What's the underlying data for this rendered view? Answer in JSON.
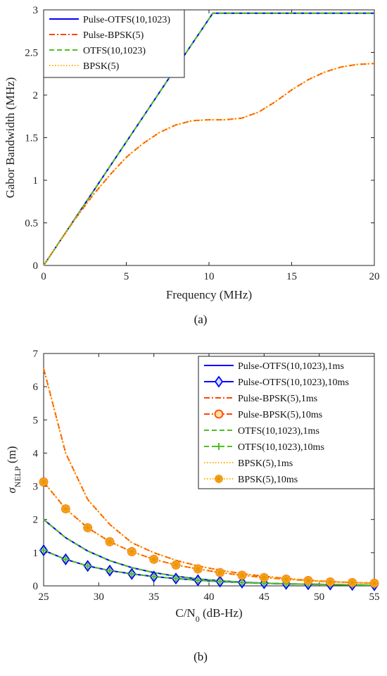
{
  "colors": {
    "pulse_otfs": "#0000ff",
    "pulse_bpsk": "#ff4500",
    "otfs": "#4fbf1f",
    "bpsk": "#ffb000",
    "bpsk_marker_fill": "#f9a825"
  },
  "chart_data": [
    {
      "id": "a",
      "type": "line",
      "caption": "(a)",
      "xlabel": "Frequency (MHz)",
      "ylabel": "Gabor Bandwidth (MHz)",
      "xlim": [
        0,
        20
      ],
      "ylim": [
        0,
        3
      ],
      "xticks": [
        "0",
        "5",
        "10",
        "15",
        "20"
      ],
      "yticks": [
        "0",
        "0.5",
        "1",
        "1.5",
        "2",
        "2.5",
        "3"
      ],
      "grid": false,
      "legend_position": "top-left",
      "series": [
        {
          "name": "Pulse-OTFS(10,1023)",
          "color_key": "pulse_otfs",
          "dash": "solid",
          "x": [
            0,
            2,
            4,
            6,
            8,
            10.23,
            12,
            14,
            16,
            18,
            20
          ],
          "y": [
            0,
            0.58,
            1.16,
            1.74,
            2.32,
            2.96,
            2.96,
            2.96,
            2.96,
            2.96,
            2.96
          ]
        },
        {
          "name": "Pulse-BPSK(5)",
          "color_key": "pulse_bpsk",
          "dash": "dashdot",
          "x": [
            0,
            1,
            2,
            3,
            4,
            5,
            6,
            7,
            8,
            9,
            10,
            11,
            12,
            13,
            14,
            15,
            16,
            17,
            18,
            19,
            20
          ],
          "y": [
            0,
            0.29,
            0.57,
            0.83,
            1.06,
            1.27,
            1.43,
            1.56,
            1.65,
            1.7,
            1.71,
            1.71,
            1.73,
            1.8,
            1.92,
            2.06,
            2.18,
            2.27,
            2.33,
            2.36,
            2.37
          ]
        },
        {
          "name": "OTFS(10,1023)",
          "color_key": "otfs",
          "dash": "dashed",
          "x": [
            0,
            2,
            4,
            6,
            8,
            10.23,
            12,
            14,
            16,
            18,
            20
          ],
          "y": [
            0,
            0.58,
            1.16,
            1.74,
            2.32,
            2.96,
            2.96,
            2.96,
            2.96,
            2.96,
            2.96
          ]
        },
        {
          "name": "BPSK(5)",
          "color_key": "bpsk",
          "dash": "dotted",
          "x": [
            0,
            1,
            2,
            3,
            4,
            5,
            6,
            7,
            8,
            9,
            10,
            11,
            12,
            13,
            14,
            15,
            16,
            17,
            18,
            19,
            20
          ],
          "y": [
            0,
            0.29,
            0.57,
            0.83,
            1.06,
            1.27,
            1.43,
            1.56,
            1.65,
            1.7,
            1.71,
            1.71,
            1.73,
            1.8,
            1.92,
            2.06,
            2.18,
            2.27,
            2.33,
            2.36,
            2.37
          ]
        }
      ]
    },
    {
      "id": "b",
      "type": "line",
      "caption": "(b)",
      "xlabel_main": "C/N",
      "xlabel_sub": "0",
      "xlabel_rest": " (dB-Hz)",
      "ylabel_main": "σ",
      "ylabel_sub": "NELP",
      "ylabel_rest": " (m)",
      "xlim": [
        25,
        55
      ],
      "ylim": [
        0,
        7
      ],
      "xticks": [
        "25",
        "30",
        "35",
        "40",
        "45",
        "50",
        "55"
      ],
      "yticks": [
        "0",
        "1",
        "2",
        "3",
        "4",
        "5",
        "6",
        "7"
      ],
      "grid": false,
      "legend_position": "top-right",
      "series": [
        {
          "name": "Pulse-OTFS(10,1023),1ms",
          "color_key": "pulse_otfs",
          "dash": "solid",
          "marker": "none",
          "x": [
            25,
            27,
            29,
            31,
            33,
            35,
            37,
            39,
            41,
            43,
            45,
            47,
            49,
            51,
            53,
            55
          ],
          "y": [
            2.0,
            1.45,
            1.05,
            0.76,
            0.55,
            0.4,
            0.29,
            0.21,
            0.15,
            0.11,
            0.08,
            0.06,
            0.05,
            0.04,
            0.03,
            0.02
          ]
        },
        {
          "name": "Pulse-OTFS(10,1023),10ms",
          "color_key": "pulse_otfs",
          "dash": "solid",
          "marker": "diamond",
          "x": [
            25,
            27,
            29,
            31,
            33,
            35,
            37,
            39,
            41,
            43,
            45,
            47,
            49,
            51,
            53,
            55
          ],
          "y": [
            1.07,
            0.8,
            0.6,
            0.46,
            0.36,
            0.28,
            0.22,
            0.17,
            0.13,
            0.1,
            0.08,
            0.06,
            0.05,
            0.04,
            0.03,
            0.02
          ]
        },
        {
          "name": "Pulse-BPSK(5),1ms",
          "color_key": "pulse_bpsk",
          "dash": "dashdot",
          "marker": "none",
          "x": [
            25,
            27,
            29,
            31,
            33,
            35,
            37,
            39,
            41,
            43,
            45,
            47,
            49,
            51,
            53,
            55
          ],
          "y": [
            6.55,
            4.0,
            2.6,
            1.85,
            1.3,
            1.0,
            0.77,
            0.6,
            0.47,
            0.37,
            0.29,
            0.22,
            0.17,
            0.13,
            0.1,
            0.08
          ]
        },
        {
          "name": "Pulse-BPSK(5),10ms",
          "color_key": "pulse_bpsk",
          "dash": "dashdot",
          "marker": "circle-open",
          "x": [
            25,
            27,
            29,
            31,
            33,
            35,
            37,
            39,
            41,
            43,
            45,
            47,
            49,
            51,
            53,
            55
          ],
          "y": [
            3.13,
            2.32,
            1.75,
            1.33,
            1.03,
            0.8,
            0.63,
            0.51,
            0.4,
            0.32,
            0.25,
            0.2,
            0.16,
            0.12,
            0.1,
            0.08
          ]
        },
        {
          "name": "OTFS(10,1023),1ms",
          "color_key": "otfs",
          "dash": "dashed",
          "marker": "none",
          "x": [
            25,
            27,
            29,
            31,
            33,
            35,
            37,
            39,
            41,
            43,
            45,
            47,
            49,
            51,
            53,
            55
          ],
          "y": [
            2.0,
            1.45,
            1.05,
            0.76,
            0.55,
            0.4,
            0.29,
            0.21,
            0.15,
            0.11,
            0.08,
            0.06,
            0.05,
            0.04,
            0.03,
            0.02
          ]
        },
        {
          "name": "OTFS(10,1023),10ms",
          "color_key": "otfs",
          "dash": "dashed",
          "marker": "plus",
          "x": [
            25,
            27,
            29,
            31,
            33,
            35,
            37,
            39,
            41,
            43,
            45,
            47,
            49,
            51,
            53,
            55
          ],
          "y": [
            1.07,
            0.8,
            0.6,
            0.46,
            0.36,
            0.28,
            0.22,
            0.17,
            0.13,
            0.1,
            0.08,
            0.06,
            0.05,
            0.04,
            0.03,
            0.02
          ]
        },
        {
          "name": "BPSK(5),1ms",
          "color_key": "bpsk",
          "dash": "dotted",
          "marker": "none",
          "x": [
            25,
            27,
            29,
            31,
            33,
            35,
            37,
            39,
            41,
            43,
            45,
            47,
            49,
            51,
            53,
            55
          ],
          "y": [
            6.55,
            4.0,
            2.6,
            1.85,
            1.3,
            1.0,
            0.77,
            0.6,
            0.47,
            0.37,
            0.29,
            0.22,
            0.17,
            0.13,
            0.1,
            0.08
          ]
        },
        {
          "name": "BPSK(5),10ms",
          "color_key": "bpsk",
          "dash": "dotted",
          "marker": "asterisk-filled",
          "x": [
            25,
            27,
            29,
            31,
            33,
            35,
            37,
            39,
            41,
            43,
            45,
            47,
            49,
            51,
            53,
            55
          ],
          "y": [
            3.13,
            2.32,
            1.75,
            1.33,
            1.03,
            0.8,
            0.63,
            0.51,
            0.4,
            0.32,
            0.25,
            0.2,
            0.16,
            0.12,
            0.1,
            0.08
          ]
        }
      ]
    }
  ]
}
